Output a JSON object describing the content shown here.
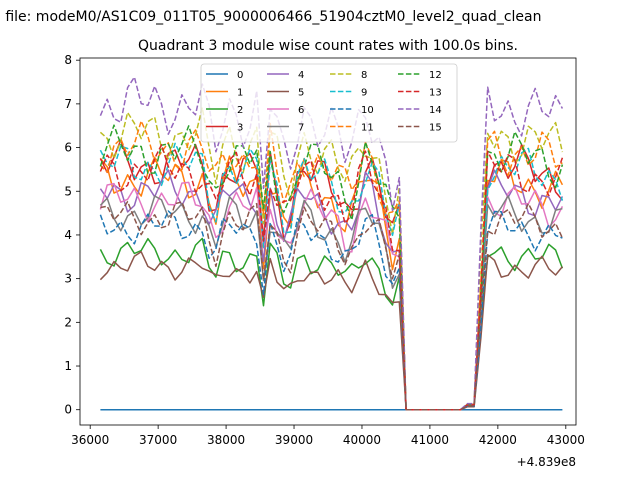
{
  "figure": {
    "suptitle": "n file: modeM0/AS1C09_011T05_9000006466_51904cztM0_level2_quad_clean",
    "title": "Quadrant 3 module wise count rates with 100.0s bins.",
    "offset_label": "+4.839e8"
  },
  "chart_data": {
    "type": "line",
    "title": "Quadrant 3 module wise count rates with 100.0s bins.",
    "xlabel": "",
    "ylabel": "",
    "x_offset": 483900000,
    "xlim": [
      35850,
      43150
    ],
    "ylim": [
      -0.35,
      8.05
    ],
    "xticks": [
      36000,
      37000,
      38000,
      39000,
      40000,
      41000,
      42000,
      43000
    ],
    "yticks": [
      0,
      1,
      2,
      3,
      4,
      5,
      6,
      7,
      8
    ],
    "legend_location": "upper center",
    "legend_columns": 4,
    "grid": false,
    "x_range": [
      36150,
      42950
    ],
    "bin_seconds": 100,
    "series": [
      {
        "name": "0",
        "color": "#1f77b4",
        "dash": "solid",
        "level": 0.0
      },
      {
        "name": "1",
        "color": "#ff7f0e",
        "dash": "solid",
        "level": 5.3
      },
      {
        "name": "2",
        "color": "#2ca02c",
        "dash": "solid",
        "level": 3.6
      },
      {
        "name": "3",
        "color": "#d62728",
        "dash": "solid",
        "level": 5.6
      },
      {
        "name": "4",
        "color": "#9467bd",
        "dash": "solid",
        "level": 5.0
      },
      {
        "name": "5",
        "color": "#8c564b",
        "dash": "solid",
        "level": 3.3
      },
      {
        "name": "6",
        "color": "#e377c2",
        "dash": "solid",
        "level": 4.8
      },
      {
        "name": "7",
        "color": "#7f7f7f",
        "dash": "solid",
        "level": 4.5
      },
      {
        "name": "8",
        "color": "#bcbd22",
        "dash": "dashed",
        "level": 6.3
      },
      {
        "name": "9",
        "color": "#17becf",
        "dash": "dashed",
        "level": 5.6
      },
      {
        "name": "10",
        "color": "#1f77b4",
        "dash": "dashed",
        "level": 4.2
      },
      {
        "name": "11",
        "color": "#ff7f0e",
        "dash": "dashed",
        "level": 6.0
      },
      {
        "name": "12",
        "color": "#2ca02c",
        "dash": "dashed",
        "level": 5.9
      },
      {
        "name": "13",
        "color": "#d62728",
        "dash": "dashed",
        "level": 5.5
      },
      {
        "name": "14",
        "color": "#9467bd",
        "dash": "dashed",
        "level": 7.0
      },
      {
        "name": "15",
        "color": "#8c564b",
        "dash": "dashed",
        "level": 4.4
      }
    ],
    "profile": {
      "x": [
        36150,
        37700,
        37800,
        38000,
        38300,
        38500,
        38550,
        38650,
        38900,
        39100,
        39300,
        39600,
        39800,
        40050,
        40200,
        40450,
        40600,
        40650,
        41500,
        41600,
        41700,
        41800,
        42000,
        42950
      ],
      "factor": [
        1.0,
        1.0,
        0.8,
        1.0,
        0.95,
        1.0,
        0.7,
        1.0,
        0.75,
        1.0,
        0.95,
        0.9,
        0.8,
        1.0,
        0.95,
        0.7,
        0.8,
        0.0,
        0.0,
        0.04,
        0.0,
        1.0,
        1.0,
        0.95
      ]
    }
  }
}
